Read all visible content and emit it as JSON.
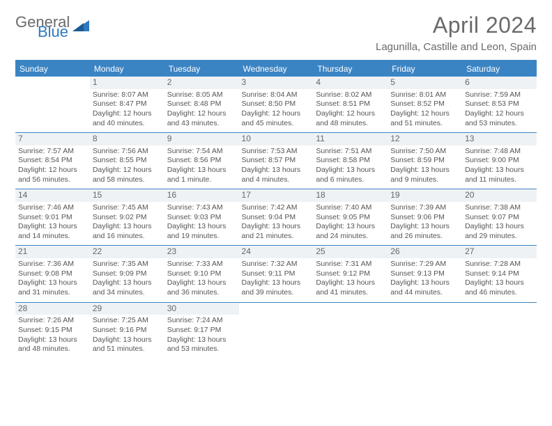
{
  "header": {
    "logo_general": "General",
    "logo_blue": "Blue",
    "month": "April 2024",
    "location": "Lagunilla, Castille and Leon, Spain"
  },
  "colors": {
    "header_bg": "#3b84c4",
    "header_text": "#ffffff",
    "daynum_bg": "#eef2f5",
    "text": "#555555",
    "title": "#6a6a6a",
    "rule": "#3b84c4"
  },
  "day_names": [
    "Sunday",
    "Monday",
    "Tuesday",
    "Wednesday",
    "Thursday",
    "Friday",
    "Saturday"
  ],
  "weeks": [
    [
      {
        "n": "",
        "sr": "",
        "ss": "",
        "dl": ""
      },
      {
        "n": "1",
        "sr": "Sunrise: 8:07 AM",
        "ss": "Sunset: 8:47 PM",
        "dl": "Daylight: 12 hours and 40 minutes."
      },
      {
        "n": "2",
        "sr": "Sunrise: 8:05 AM",
        "ss": "Sunset: 8:48 PM",
        "dl": "Daylight: 12 hours and 43 minutes."
      },
      {
        "n": "3",
        "sr": "Sunrise: 8:04 AM",
        "ss": "Sunset: 8:50 PM",
        "dl": "Daylight: 12 hours and 45 minutes."
      },
      {
        "n": "4",
        "sr": "Sunrise: 8:02 AM",
        "ss": "Sunset: 8:51 PM",
        "dl": "Daylight: 12 hours and 48 minutes."
      },
      {
        "n": "5",
        "sr": "Sunrise: 8:01 AM",
        "ss": "Sunset: 8:52 PM",
        "dl": "Daylight: 12 hours and 51 minutes."
      },
      {
        "n": "6",
        "sr": "Sunrise: 7:59 AM",
        "ss": "Sunset: 8:53 PM",
        "dl": "Daylight: 12 hours and 53 minutes."
      }
    ],
    [
      {
        "n": "7",
        "sr": "Sunrise: 7:57 AM",
        "ss": "Sunset: 8:54 PM",
        "dl": "Daylight: 12 hours and 56 minutes."
      },
      {
        "n": "8",
        "sr": "Sunrise: 7:56 AM",
        "ss": "Sunset: 8:55 PM",
        "dl": "Daylight: 12 hours and 58 minutes."
      },
      {
        "n": "9",
        "sr": "Sunrise: 7:54 AM",
        "ss": "Sunset: 8:56 PM",
        "dl": "Daylight: 13 hours and 1 minute."
      },
      {
        "n": "10",
        "sr": "Sunrise: 7:53 AM",
        "ss": "Sunset: 8:57 PM",
        "dl": "Daylight: 13 hours and 4 minutes."
      },
      {
        "n": "11",
        "sr": "Sunrise: 7:51 AM",
        "ss": "Sunset: 8:58 PM",
        "dl": "Daylight: 13 hours and 6 minutes."
      },
      {
        "n": "12",
        "sr": "Sunrise: 7:50 AM",
        "ss": "Sunset: 8:59 PM",
        "dl": "Daylight: 13 hours and 9 minutes."
      },
      {
        "n": "13",
        "sr": "Sunrise: 7:48 AM",
        "ss": "Sunset: 9:00 PM",
        "dl": "Daylight: 13 hours and 11 minutes."
      }
    ],
    [
      {
        "n": "14",
        "sr": "Sunrise: 7:46 AM",
        "ss": "Sunset: 9:01 PM",
        "dl": "Daylight: 13 hours and 14 minutes."
      },
      {
        "n": "15",
        "sr": "Sunrise: 7:45 AM",
        "ss": "Sunset: 9:02 PM",
        "dl": "Daylight: 13 hours and 16 minutes."
      },
      {
        "n": "16",
        "sr": "Sunrise: 7:43 AM",
        "ss": "Sunset: 9:03 PM",
        "dl": "Daylight: 13 hours and 19 minutes."
      },
      {
        "n": "17",
        "sr": "Sunrise: 7:42 AM",
        "ss": "Sunset: 9:04 PM",
        "dl": "Daylight: 13 hours and 21 minutes."
      },
      {
        "n": "18",
        "sr": "Sunrise: 7:40 AM",
        "ss": "Sunset: 9:05 PM",
        "dl": "Daylight: 13 hours and 24 minutes."
      },
      {
        "n": "19",
        "sr": "Sunrise: 7:39 AM",
        "ss": "Sunset: 9:06 PM",
        "dl": "Daylight: 13 hours and 26 minutes."
      },
      {
        "n": "20",
        "sr": "Sunrise: 7:38 AM",
        "ss": "Sunset: 9:07 PM",
        "dl": "Daylight: 13 hours and 29 minutes."
      }
    ],
    [
      {
        "n": "21",
        "sr": "Sunrise: 7:36 AM",
        "ss": "Sunset: 9:08 PM",
        "dl": "Daylight: 13 hours and 31 minutes."
      },
      {
        "n": "22",
        "sr": "Sunrise: 7:35 AM",
        "ss": "Sunset: 9:09 PM",
        "dl": "Daylight: 13 hours and 34 minutes."
      },
      {
        "n": "23",
        "sr": "Sunrise: 7:33 AM",
        "ss": "Sunset: 9:10 PM",
        "dl": "Daylight: 13 hours and 36 minutes."
      },
      {
        "n": "24",
        "sr": "Sunrise: 7:32 AM",
        "ss": "Sunset: 9:11 PM",
        "dl": "Daylight: 13 hours and 39 minutes."
      },
      {
        "n": "25",
        "sr": "Sunrise: 7:31 AM",
        "ss": "Sunset: 9:12 PM",
        "dl": "Daylight: 13 hours and 41 minutes."
      },
      {
        "n": "26",
        "sr": "Sunrise: 7:29 AM",
        "ss": "Sunset: 9:13 PM",
        "dl": "Daylight: 13 hours and 44 minutes."
      },
      {
        "n": "27",
        "sr": "Sunrise: 7:28 AM",
        "ss": "Sunset: 9:14 PM",
        "dl": "Daylight: 13 hours and 46 minutes."
      }
    ],
    [
      {
        "n": "28",
        "sr": "Sunrise: 7:26 AM",
        "ss": "Sunset: 9:15 PM",
        "dl": "Daylight: 13 hours and 48 minutes."
      },
      {
        "n": "29",
        "sr": "Sunrise: 7:25 AM",
        "ss": "Sunset: 9:16 PM",
        "dl": "Daylight: 13 hours and 51 minutes."
      },
      {
        "n": "30",
        "sr": "Sunrise: 7:24 AM",
        "ss": "Sunset: 9:17 PM",
        "dl": "Daylight: 13 hours and 53 minutes."
      },
      {
        "n": "",
        "sr": "",
        "ss": "",
        "dl": ""
      },
      {
        "n": "",
        "sr": "",
        "ss": "",
        "dl": ""
      },
      {
        "n": "",
        "sr": "",
        "ss": "",
        "dl": ""
      },
      {
        "n": "",
        "sr": "",
        "ss": "",
        "dl": ""
      }
    ]
  ]
}
